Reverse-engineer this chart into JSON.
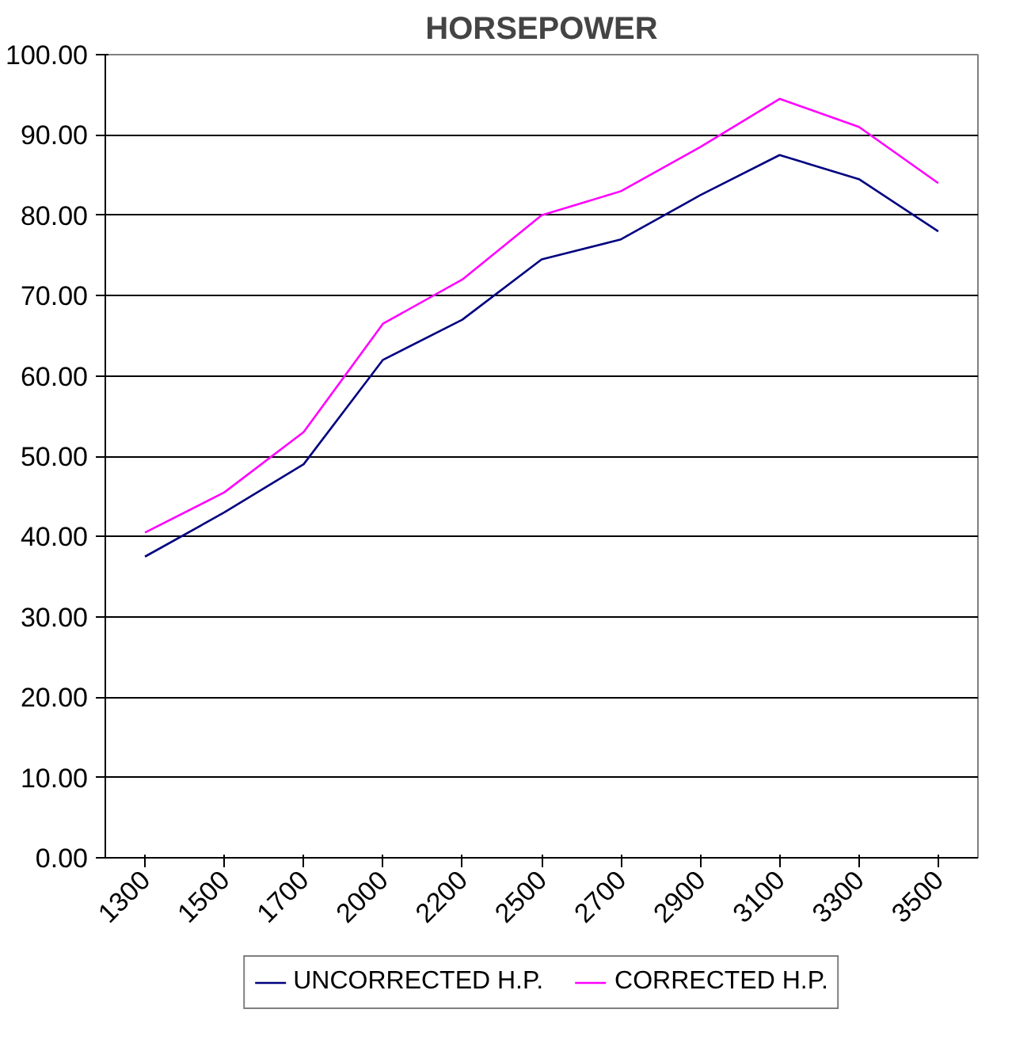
{
  "chart_data": {
    "type": "line",
    "title": "HORSEPOWER",
    "categories": [
      "1300",
      "1500",
      "1700",
      "2000",
      "2200",
      "2500",
      "2700",
      "2900",
      "3100",
      "3300",
      "3500"
    ],
    "series": [
      {
        "name": "UNCORRECTED H.P.",
        "color": "#000080",
        "values": [
          37.5,
          43,
          49,
          62,
          67,
          74.5,
          77,
          82.5,
          87.5,
          84.5,
          78
        ]
      },
      {
        "name": "CORRECTED H.P.",
        "color": "#ff00ff",
        "values": [
          40.5,
          45.5,
          53,
          66.5,
          72,
          80,
          83,
          88.5,
          94.5,
          91,
          84
        ]
      }
    ],
    "ylim": [
      0,
      100
    ],
    "yticks": [
      {
        "value": 0,
        "label": "0.00"
      },
      {
        "value": 10,
        "label": "10.00"
      },
      {
        "value": 20,
        "label": "20.00"
      },
      {
        "value": 30,
        "label": "30.00"
      },
      {
        "value": 40,
        "label": "40.00"
      },
      {
        "value": 50,
        "label": "50.00"
      },
      {
        "value": 60,
        "label": "60.00"
      },
      {
        "value": 70,
        "label": "70.00"
      },
      {
        "value": 80,
        "label": "80.00"
      },
      {
        "value": 90,
        "label": "90.00"
      },
      {
        "value": 100,
        "label": "100.00"
      }
    ],
    "grid": "y",
    "legend": "bottom",
    "marker": "none",
    "line_style": "solid"
  }
}
